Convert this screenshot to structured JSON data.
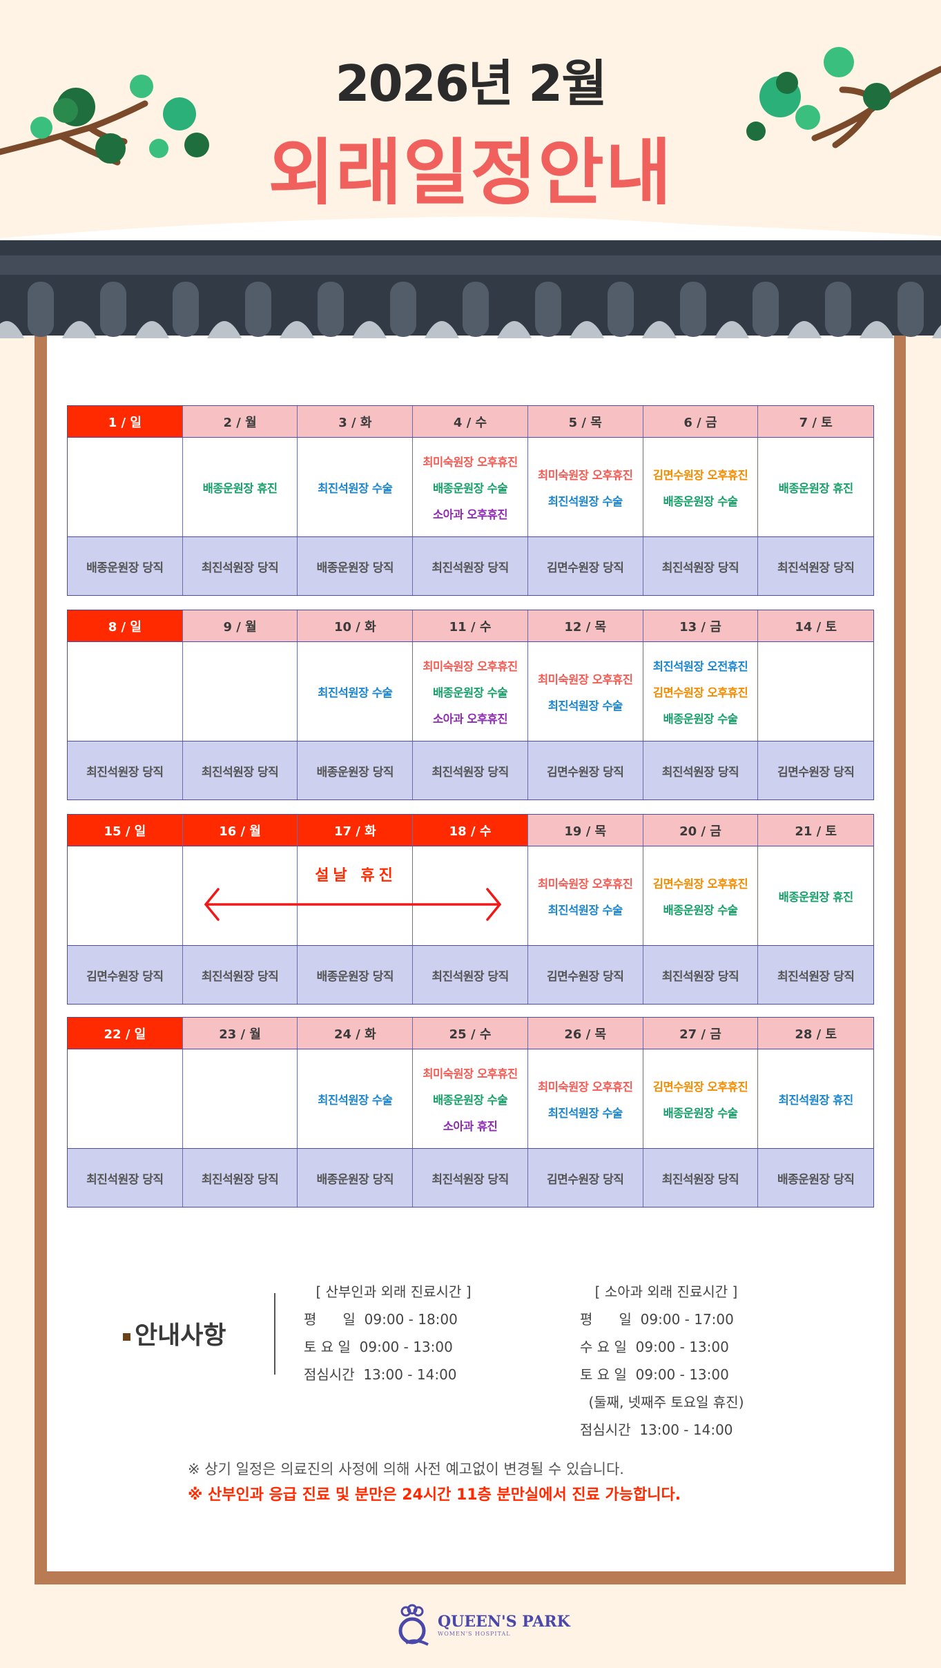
{
  "header": {
    "year_month": "2026년 2월",
    "title": "외래일정안내"
  },
  "colors": {
    "background": "#fef3e4",
    "header_pink": "#f7c1c3",
    "holiday_red": "#ff2a00",
    "duty_row": "#cdd0ef",
    "coral": "#f25c54",
    "green": "#17a06a",
    "blue": "#1a86d0",
    "orange": "#f28c00",
    "purple": "#8e2bb0"
  },
  "weeks": [
    {
      "days": [
        {
          "label": "1 / 일",
          "holiday": true,
          "items": [],
          "duty": "배종운원장 당직"
        },
        {
          "label": "2 / 월",
          "items": [
            {
              "text": "배종운원장 휴진",
              "color": "green"
            }
          ],
          "duty": "최진석원장 당직"
        },
        {
          "label": "3 / 화",
          "items": [
            {
              "text": "최진석원장 수술",
              "color": "blue"
            }
          ],
          "duty": "배종운원장 당직"
        },
        {
          "label": "4 / 수",
          "items": [
            {
              "text": "최미숙원장 오후휴진",
              "color": "coral"
            },
            {
              "text": "배종운원장 수술",
              "color": "green"
            },
            {
              "text": "소아과 오후휴진",
              "color": "purple"
            }
          ],
          "duty": "최진석원장 당직"
        },
        {
          "label": "5 / 목",
          "items": [
            {
              "text": "최미숙원장 오후휴진",
              "color": "coral"
            },
            {
              "text": "최진석원장 수술",
              "color": "blue"
            }
          ],
          "duty": "김면수원장 당직"
        },
        {
          "label": "6 / 금",
          "items": [
            {
              "text": "김면수원장 오후휴진",
              "color": "orange"
            },
            {
              "text": "배종운원장 수술",
              "color": "green"
            }
          ],
          "duty": "최진석원장 당직"
        },
        {
          "label": "7 / 토",
          "items": [
            {
              "text": "배종운원장 휴진",
              "color": "green"
            }
          ],
          "duty": "최진석원장 당직"
        }
      ]
    },
    {
      "days": [
        {
          "label": "8 / 일",
          "holiday": true,
          "items": [],
          "duty": "최진석원장 당직"
        },
        {
          "label": "9 / 월",
          "items": [],
          "duty": "최진석원장 당직"
        },
        {
          "label": "10 / 화",
          "items": [
            {
              "text": "최진석원장 수술",
              "color": "blue"
            }
          ],
          "duty": "배종운원장 당직"
        },
        {
          "label": "11 / 수",
          "items": [
            {
              "text": "최미숙원장 오후휴진",
              "color": "coral"
            },
            {
              "text": "배종운원장 수술",
              "color": "green"
            },
            {
              "text": "소아과 오후휴진",
              "color": "purple"
            }
          ],
          "duty": "최진석원장 당직"
        },
        {
          "label": "12 / 목",
          "items": [
            {
              "text": "최미숙원장 오후휴진",
              "color": "coral"
            },
            {
              "text": "최진석원장 수술",
              "color": "blue"
            }
          ],
          "duty": "김면수원장 당직"
        },
        {
          "label": "13 / 금",
          "items": [
            {
              "text": "최진석원장 오전휴진",
              "color": "blue"
            },
            {
              "text": "김면수원장 오후휴진",
              "color": "orange"
            },
            {
              "text": "배종운원장 수술",
              "color": "green"
            }
          ],
          "duty": "최진석원장 당직"
        },
        {
          "label": "14 / 토",
          "items": [],
          "duty": "김면수원장 당직"
        }
      ]
    },
    {
      "days": [
        {
          "label": "15 / 일",
          "holiday": true,
          "items": [],
          "duty": "김면수원장 당직"
        },
        {
          "label": "16 / 월",
          "holiday": true,
          "items": [],
          "duty": "최진석원장 당직"
        },
        {
          "label": "17 / 화",
          "holiday": true,
          "items": [],
          "duty": "배종운원장 당직"
        },
        {
          "label": "18 / 수",
          "holiday": true,
          "items": [],
          "duty": "최진석원장 당직"
        },
        {
          "label": "19 / 목",
          "items": [
            {
              "text": "최미숙원장 오후휴진",
              "color": "coral"
            },
            {
              "text": "최진석원장 수술",
              "color": "blue"
            }
          ],
          "duty": "김면수원장 당직"
        },
        {
          "label": "20 / 금",
          "items": [
            {
              "text": "김면수원장 오후휴진",
              "color": "orange"
            },
            {
              "text": "배종운원장 수술",
              "color": "green"
            }
          ],
          "duty": "최진석원장 당직"
        },
        {
          "label": "21 / 토",
          "items": [
            {
              "text": "배종운원장 휴진",
              "color": "green"
            }
          ],
          "duty": "최진석원장 당직"
        }
      ],
      "banner": "설날 휴진"
    },
    {
      "days": [
        {
          "label": "22 / 일",
          "holiday": true,
          "items": [],
          "duty": "최진석원장 당직"
        },
        {
          "label": "23 / 월",
          "items": [],
          "duty": "최진석원장 당직"
        },
        {
          "label": "24 / 화",
          "items": [
            {
              "text": "최진석원장 수술",
              "color": "blue"
            }
          ],
          "duty": "배종운원장 당직"
        },
        {
          "label": "25 / 수",
          "items": [
            {
              "text": "최미숙원장 오후휴진",
              "color": "coral"
            },
            {
              "text": "배종운원장 수술",
              "color": "green"
            },
            {
              "text": "소아과 휴진",
              "color": "purple"
            }
          ],
          "duty": "최진석원장 당직"
        },
        {
          "label": "26 / 목",
          "items": [
            {
              "text": "최미숙원장 오후휴진",
              "color": "coral"
            },
            {
              "text": "최진석원장 수술",
              "color": "blue"
            }
          ],
          "duty": "김면수원장 당직"
        },
        {
          "label": "27 / 금",
          "items": [
            {
              "text": "김면수원장 오후휴진",
              "color": "orange"
            },
            {
              "text": "배종운원장 수술",
              "color": "green"
            }
          ],
          "duty": "최진석원장 당직"
        },
        {
          "label": "28 / 토",
          "items": [
            {
              "text": "최진석원장 휴진",
              "color": "blue"
            }
          ],
          "duty": "배종운원장 당직"
        }
      ]
    }
  ],
  "notice": {
    "title": "안내사항",
    "ob": {
      "heading": "[ 산부인과 외래 진료시간 ]",
      "lines": [
        "평      일  09:00 - 18:00",
        "토 요 일  09:00 - 13:00",
        "점심시간  13:00 - 14:00"
      ]
    },
    "peds": {
      "heading": "[ 소아과 외래 진료시간 ]",
      "lines": [
        "평      일  09:00 - 17:00",
        "수 요 일  09:00 - 13:00",
        "토 요 일  09:00 - 13:00",
        "(둘째, 넷째주 토요일 휴진)",
        "점심시간  13:00 - 14:00"
      ]
    },
    "note1": "※ 상기 일정은 의료진의 사정에 의해 사전 예고없이 변경될 수 있습니다.",
    "note2": "※ 산부인과 응급 진료 및 분만은 24시간 11층 분만실에서 진료 가능합니다."
  },
  "logo": {
    "name": "QUEEN'S PARK",
    "sub": "WOMEN'S HOSPITAL"
  }
}
